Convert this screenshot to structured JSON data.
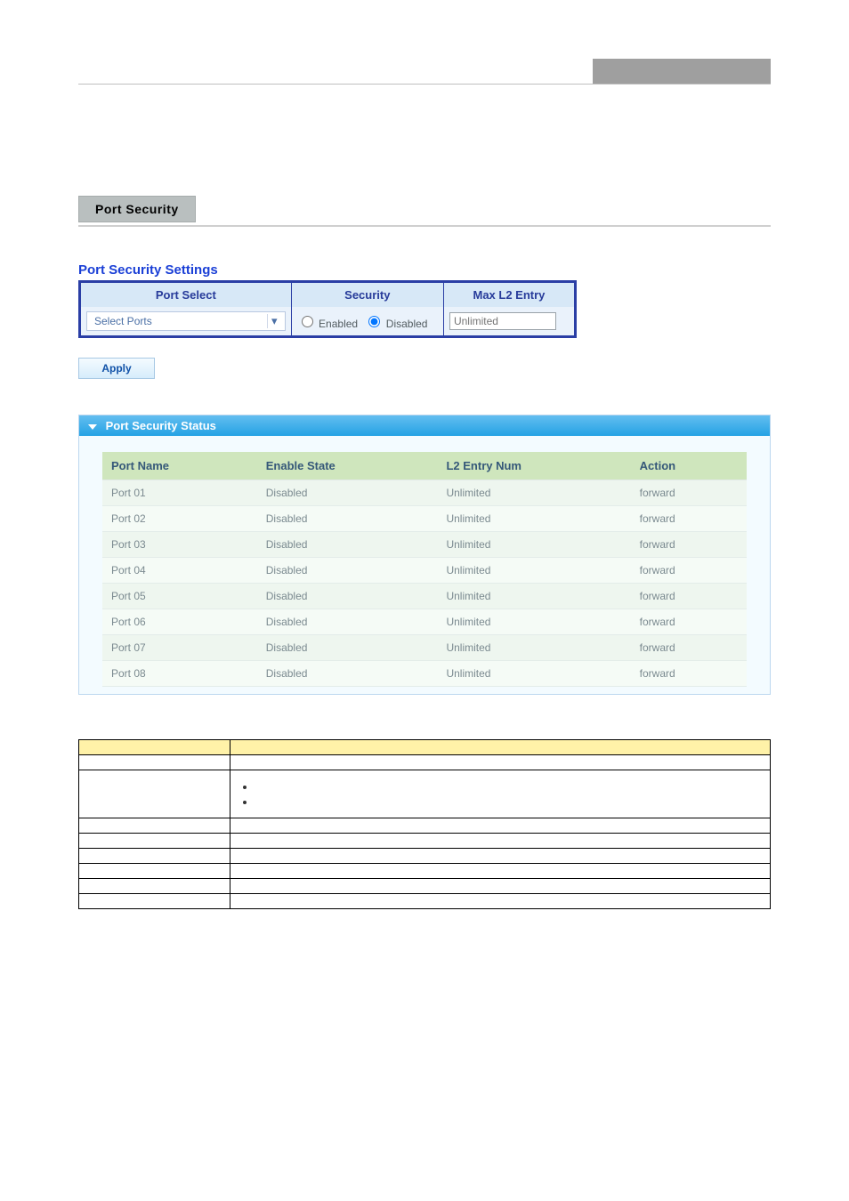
{
  "colors": {
    "tab_bg": "#b9bfbf",
    "settings_border": "#2a3ea5",
    "settings_header_bg": "#d7e8f7",
    "settings_header_text": "#273b9a",
    "status_header_gradient_top": "#63bef0",
    "status_header_gradient_bottom": "#24a2e4",
    "status_th_bg": "#cfe6bd",
    "status_row_odd": "#eef6ef",
    "status_row_even": "#f5fbf6",
    "desc_header_bg": "#fff2a8",
    "heading_text": "#1a3fd6"
  },
  "tab_title": "Port Security",
  "section_heading": "Port Security Settings",
  "settings": {
    "columns": {
      "port_select": "Port Select",
      "security": "Security",
      "max_l2": "Max L2 Entry"
    },
    "port_select_placeholder": "Select Ports",
    "security_options": {
      "enabled": "Enabled",
      "disabled": "Disabled"
    },
    "security_selected": "disabled",
    "max_l2_placeholder": "Unlimited"
  },
  "apply_label": "Apply",
  "status": {
    "panel_title": "Port Security Status",
    "columns": {
      "port_name": "Port Name",
      "enable_state": "Enable State",
      "l2_entry_num": "L2 Entry Num",
      "action": "Action"
    },
    "rows": [
      {
        "port_name": "Port 01",
        "enable_state": "Disabled",
        "l2_entry_num": "Unlimited",
        "action": "forward"
      },
      {
        "port_name": "Port 02",
        "enable_state": "Disabled",
        "l2_entry_num": "Unlimited",
        "action": "forward"
      },
      {
        "port_name": "Port 03",
        "enable_state": "Disabled",
        "l2_entry_num": "Unlimited",
        "action": "forward"
      },
      {
        "port_name": "Port 04",
        "enable_state": "Disabled",
        "l2_entry_num": "Unlimited",
        "action": "forward"
      },
      {
        "port_name": "Port 05",
        "enable_state": "Disabled",
        "l2_entry_num": "Unlimited",
        "action": "forward"
      },
      {
        "port_name": "Port 06",
        "enable_state": "Disabled",
        "l2_entry_num": "Unlimited",
        "action": "forward"
      },
      {
        "port_name": "Port 07",
        "enable_state": "Disabled",
        "l2_entry_num": "Unlimited",
        "action": "forward"
      },
      {
        "port_name": "Port 08",
        "enable_state": "Disabled",
        "l2_entry_num": "Unlimited",
        "action": "forward"
      }
    ]
  },
  "desc_table": {
    "rows": [
      {
        "object": "",
        "description": "",
        "bullets": []
      },
      {
        "object": "",
        "description": "",
        "bullets": [
          "",
          ""
        ]
      },
      {
        "object": "",
        "description": "",
        "bullets": []
      },
      {
        "object": "",
        "description": "",
        "bullets": []
      },
      {
        "object": "",
        "description": "",
        "bullets": []
      },
      {
        "object": "",
        "description": "",
        "bullets": []
      },
      {
        "object": "",
        "description": "",
        "bullets": []
      },
      {
        "object": "",
        "description": "",
        "bullets": []
      }
    ]
  }
}
